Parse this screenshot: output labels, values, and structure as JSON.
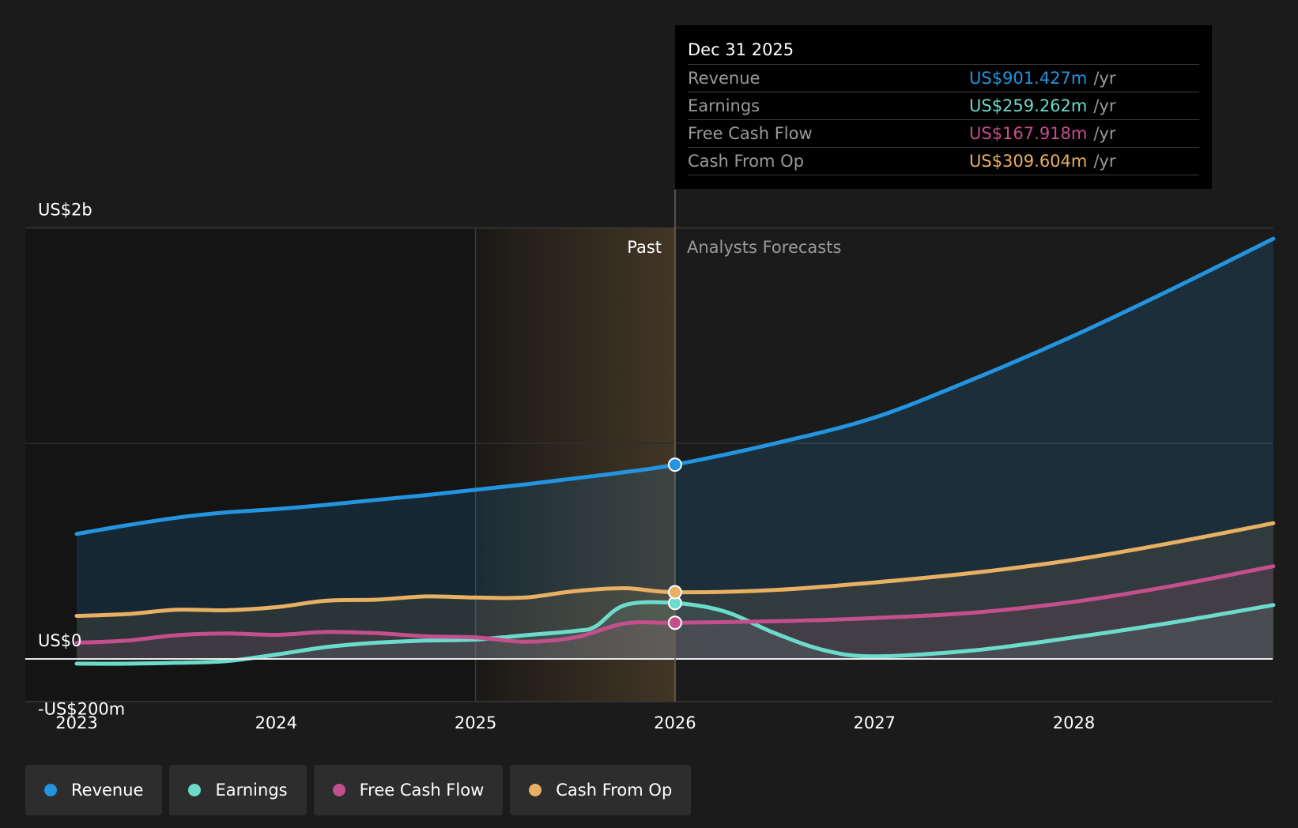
{
  "chart_data": {
    "type": "line",
    "x_ticks": [
      "2023",
      "2024",
      "2025",
      "2026",
      "2027",
      "2028"
    ],
    "y_tick_labels": [
      "US$2b",
      "US$0",
      "-US$200m"
    ],
    "ylim": [
      -400,
      2000
    ],
    "units": "US$ m",
    "past_label": "Past",
    "forecast_label": "Analysts Forecasts",
    "grid": true,
    "legend_position": "bottom-left",
    "series": [
      {
        "name": "Revenue",
        "color": "#2394df",
        "x": [
          2023.0,
          2023.25,
          2023.5,
          2023.75,
          2024.0,
          2024.25,
          2024.5,
          2024.75,
          2025.0,
          2025.25,
          2025.5,
          2025.75,
          2026.0,
          2026.5,
          2027.0,
          2027.5,
          2028.0,
          2028.5,
          2029.0
        ],
        "values": [
          580,
          620,
          655,
          680,
          695,
          715,
          738,
          760,
          785,
          810,
          838,
          867,
          901.427,
          1000,
          1120,
          1300,
          1500,
          1720,
          1950
        ]
      },
      {
        "name": "Earnings",
        "color": "#6bdccb",
        "x": [
          2023.0,
          2023.25,
          2023.5,
          2023.75,
          2024.0,
          2024.25,
          2024.5,
          2024.75,
          2025.0,
          2025.25,
          2025.5,
          2025.6,
          2025.75,
          2026.0,
          2026.25,
          2026.5,
          2026.75,
          2027.0,
          2027.5,
          2028.0,
          2028.5,
          2029.0
        ],
        "values": [
          -22,
          -22,
          -18,
          -10,
          20,
          55,
          75,
          85,
          90,
          110,
          130,
          150,
          250,
          259.262,
          220,
          120,
          40,
          12,
          40,
          100,
          170,
          250
        ]
      },
      {
        "name": "Free Cash Flow",
        "color": "#c44f8d",
        "x": [
          2023.0,
          2023.25,
          2023.5,
          2023.75,
          2024.0,
          2024.25,
          2024.5,
          2024.75,
          2025.0,
          2025.25,
          2025.5,
          2025.75,
          2026.0,
          2026.5,
          2027.0,
          2027.5,
          2028.0,
          2028.5,
          2029.0
        ],
        "values": [
          75,
          85,
          110,
          118,
          112,
          125,
          120,
          105,
          100,
          80,
          100,
          165,
          167.918,
          175,
          190,
          215,
          265,
          340,
          430
        ]
      },
      {
        "name": "Cash From Op",
        "color": "#e8b062",
        "x": [
          2023.0,
          2023.25,
          2023.5,
          2023.75,
          2024.0,
          2024.25,
          2024.5,
          2024.75,
          2025.0,
          2025.25,
          2025.5,
          2025.75,
          2026.0,
          2026.5,
          2027.0,
          2027.5,
          2028.0,
          2028.5,
          2029.0
        ],
        "values": [
          200,
          208,
          228,
          226,
          240,
          270,
          275,
          290,
          285,
          285,
          315,
          328,
          309.604,
          320,
          355,
          400,
          460,
          540,
          630
        ]
      }
    ]
  },
  "tooltip": {
    "date": "Dec 31 2025",
    "unit": "/yr",
    "rows": [
      {
        "label": "Revenue",
        "value": "US$901.427m",
        "color": "#2394df"
      },
      {
        "label": "Earnings",
        "value": "US$259.262m",
        "color": "#6bdccb"
      },
      {
        "label": "Free Cash Flow",
        "value": "US$167.918m",
        "color": "#c44f8d"
      },
      {
        "label": "Cash From Op",
        "value": "US$309.604m",
        "color": "#e8b062"
      }
    ]
  },
  "legend": [
    {
      "label": "Revenue",
      "color": "#2394df"
    },
    {
      "label": "Earnings",
      "color": "#6bdccb"
    },
    {
      "label": "Free Cash Flow",
      "color": "#c44f8d"
    },
    {
      "label": "Cash From Op",
      "color": "#e8b062"
    }
  ]
}
